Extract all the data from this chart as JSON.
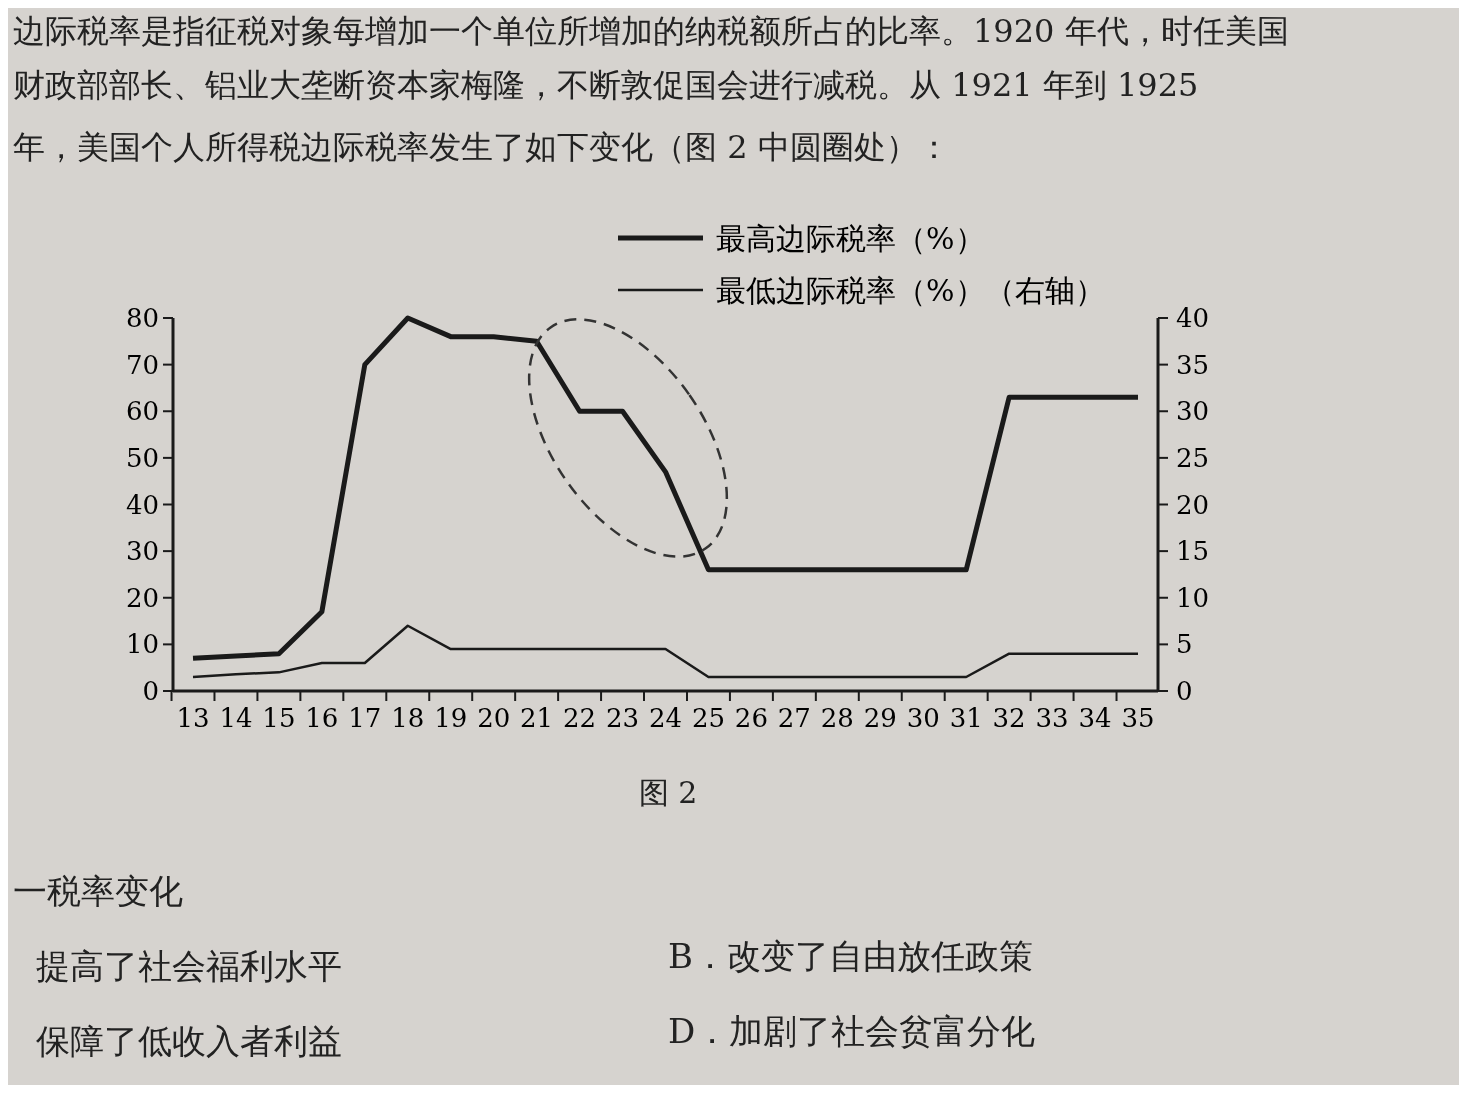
{
  "chart_data": {
    "type": "line",
    "annotations": [
      "边际税率是指征税对象每增加一个单位所增加的纳税额所占的比率。1920 年代，时任美国",
      "财政部部长、铝业大垄断资本家梅隆，不断敦促国会进行减税。从 1921 年到 1925",
      "年，美国个人所得税边际税率发生了如下变化（图 2 中圆圈处）：",
      "图 2",
      "一税率变化",
      "提高了社会福利水平",
      "B．改变了自由放任政策",
      "保障了低收入者利益",
      "D．加剧了社会贫富分化"
    ],
    "categories": [
      "13",
      "14",
      "15",
      "16",
      "17",
      "18",
      "19",
      "20",
      "21",
      "22",
      "23",
      "24",
      "25",
      "26",
      "27",
      "28",
      "29",
      "30",
      "31",
      "32",
      "33",
      "34",
      "35"
    ],
    "series": [
      {
        "name": "最高边际税率（%）",
        "color": "#1a1a1a",
        "values": [
          7,
          7.5,
          8,
          17,
          70,
          80,
          76,
          76,
          75,
          60,
          60,
          47,
          26,
          26,
          26,
          26,
          26,
          26,
          26,
          63,
          63,
          63,
          63
        ]
      },
      {
        "name": "最低边际税率（%）（右轴）",
        "color": "#1a1a1a",
        "axis": "y2",
        "values": [
          1.5,
          1.8,
          2,
          3,
          3,
          7,
          4.5,
          4.5,
          4.5,
          4.5,
          4.5,
          4.5,
          1.5,
          1.5,
          1.5,
          1.5,
          1.5,
          1.5,
          1.5,
          4,
          4,
          4,
          4
        ]
      }
    ],
    "ylim": [
      0,
      80
    ],
    "yticks": [
      0,
      10,
      20,
      30,
      40,
      50,
      60,
      70,
      80
    ],
    "y2lim": [
      0,
      40
    ],
    "y2ticks": [
      0,
      5,
      10,
      15,
      20,
      25,
      30,
      35,
      40
    ],
    "legend": "top right",
    "grid": false
  }
}
